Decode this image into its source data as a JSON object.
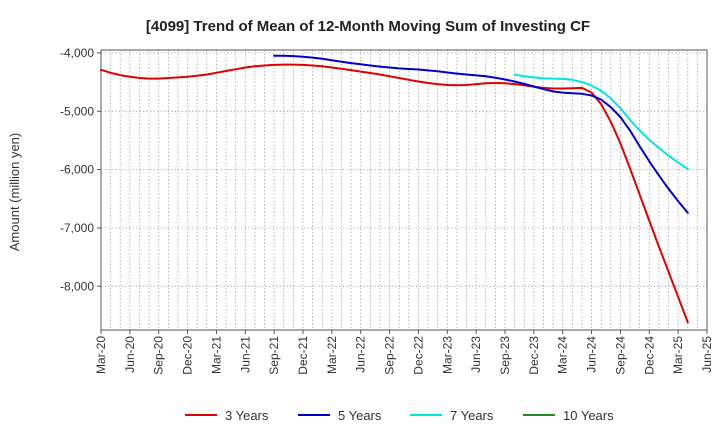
{
  "chart_data": {
    "type": "line",
    "title": "[4099]  Trend of Mean of 12-Month Moving Sum of Investing CF",
    "xlabel": "",
    "ylabel": "Amount (million yen)",
    "ylim": [
      -8750,
      -3950
    ],
    "y_ticks": [
      -4000,
      -5000,
      -6000,
      -7000,
      -8000
    ],
    "y_tick_labels": [
      "-4,000",
      "-5,000",
      "-6,000",
      "-7,000",
      "-8,000"
    ],
    "x_tick_labels": [
      "Mar-20",
      "Jun-20",
      "Sep-20",
      "Dec-20",
      "Mar-21",
      "Jun-21",
      "Sep-21",
      "Dec-21",
      "Mar-22",
      "Jun-22",
      "Sep-22",
      "Dec-22",
      "Mar-23",
      "Jun-23",
      "Sep-23",
      "Dec-23",
      "Mar-24",
      "Jun-24",
      "Sep-24",
      "Dec-24",
      "Mar-25",
      "Jun-25"
    ],
    "x_index_note": "x = months since Mar-20",
    "x_max": 63,
    "grid": true,
    "legend_position": "bottom",
    "series": [
      {
        "name": "3 Years",
        "color": "#e00000",
        "points": [
          [
            0,
            -4290
          ],
          [
            1,
            -4340
          ],
          [
            2,
            -4380
          ],
          [
            3,
            -4410
          ],
          [
            4,
            -4430
          ],
          [
            5,
            -4440
          ],
          [
            6,
            -4440
          ],
          [
            7,
            -4430
          ],
          [
            8,
            -4420
          ],
          [
            9,
            -4410
          ],
          [
            10,
            -4390
          ],
          [
            11,
            -4370
          ],
          [
            12,
            -4340
          ],
          [
            13,
            -4310
          ],
          [
            14,
            -4280
          ],
          [
            15,
            -4250
          ],
          [
            16,
            -4230
          ],
          [
            17,
            -4215
          ],
          [
            18,
            -4205
          ],
          [
            19,
            -4200
          ],
          [
            20,
            -4200
          ],
          [
            21,
            -4205
          ],
          [
            22,
            -4215
          ],
          [
            23,
            -4230
          ],
          [
            24,
            -4250
          ],
          [
            25,
            -4270
          ],
          [
            26,
            -4295
          ],
          [
            27,
            -4320
          ],
          [
            28,
            -4345
          ],
          [
            29,
            -4370
          ],
          [
            30,
            -4400
          ],
          [
            31,
            -4430
          ],
          [
            32,
            -4460
          ],
          [
            33,
            -4490
          ],
          [
            34,
            -4515
          ],
          [
            35,
            -4535
          ],
          [
            36,
            -4550
          ],
          [
            37,
            -4555
          ],
          [
            38,
            -4550
          ],
          [
            39,
            -4535
          ],
          [
            40,
            -4520
          ],
          [
            41,
            -4515
          ],
          [
            42,
            -4520
          ],
          [
            43,
            -4535
          ],
          [
            44,
            -4555
          ],
          [
            45,
            -4580
          ],
          [
            46,
            -4600
          ],
          [
            47,
            -4610
          ],
          [
            48,
            -4610
          ],
          [
            49,
            -4605
          ],
          [
            50,
            -4600
          ],
          [
            51,
            -4680
          ],
          [
            52,
            -4880
          ],
          [
            53,
            -5180
          ],
          [
            54,
            -5550
          ],
          [
            55,
            -5980
          ],
          [
            56,
            -6430
          ],
          [
            57,
            -6880
          ],
          [
            58,
            -7320
          ],
          [
            59,
            -7750
          ],
          [
            60,
            -8180
          ],
          [
            61,
            -8620
          ]
        ]
      },
      {
        "name": "5 Years",
        "color": "#0000cc",
        "points": [
          [
            18,
            -4050
          ],
          [
            19,
            -4050
          ],
          [
            20,
            -4055
          ],
          [
            21,
            -4065
          ],
          [
            22,
            -4080
          ],
          [
            23,
            -4100
          ],
          [
            24,
            -4125
          ],
          [
            25,
            -4150
          ],
          [
            26,
            -4175
          ],
          [
            27,
            -4195
          ],
          [
            28,
            -4215
          ],
          [
            29,
            -4235
          ],
          [
            30,
            -4250
          ],
          [
            31,
            -4265
          ],
          [
            32,
            -4275
          ],
          [
            33,
            -4285
          ],
          [
            34,
            -4300
          ],
          [
            35,
            -4315
          ],
          [
            36,
            -4335
          ],
          [
            37,
            -4355
          ],
          [
            38,
            -4370
          ],
          [
            39,
            -4385
          ],
          [
            40,
            -4400
          ],
          [
            41,
            -4425
          ],
          [
            42,
            -4455
          ],
          [
            43,
            -4490
          ],
          [
            44,
            -4530
          ],
          [
            45,
            -4575
          ],
          [
            46,
            -4620
          ],
          [
            47,
            -4660
          ],
          [
            48,
            -4680
          ],
          [
            49,
            -4690
          ],
          [
            50,
            -4700
          ],
          [
            51,
            -4730
          ],
          [
            52,
            -4800
          ],
          [
            53,
            -4930
          ],
          [
            54,
            -5100
          ],
          [
            55,
            -5330
          ],
          [
            56,
            -5600
          ],
          [
            57,
            -5860
          ],
          [
            58,
            -6100
          ],
          [
            59,
            -6330
          ],
          [
            60,
            -6540
          ],
          [
            61,
            -6740
          ]
        ]
      },
      {
        "name": "7 Years",
        "color": "#00e5e5",
        "points": [
          [
            43,
            -4370
          ],
          [
            44,
            -4400
          ],
          [
            45,
            -4420
          ],
          [
            46,
            -4435
          ],
          [
            47,
            -4440
          ],
          [
            48,
            -4445
          ],
          [
            49,
            -4460
          ],
          [
            50,
            -4500
          ],
          [
            51,
            -4560
          ],
          [
            52,
            -4650
          ],
          [
            53,
            -4780
          ],
          [
            54,
            -4950
          ],
          [
            55,
            -5150
          ],
          [
            56,
            -5330
          ],
          [
            57,
            -5490
          ],
          [
            58,
            -5630
          ],
          [
            59,
            -5760
          ],
          [
            60,
            -5880
          ],
          [
            61,
            -5990
          ]
        ]
      },
      {
        "name": "10 Years",
        "color": "#228b22",
        "points": []
      }
    ]
  }
}
